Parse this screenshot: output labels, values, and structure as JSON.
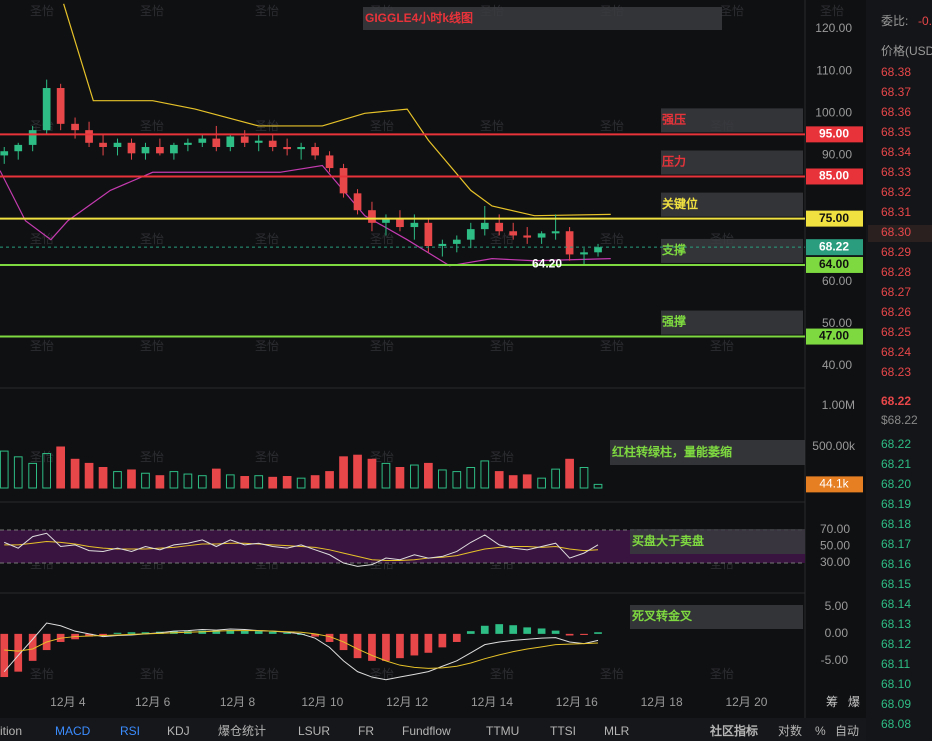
{
  "chart_data": {
    "type": "candlestick",
    "title": "GIGGLE4小时k线图",
    "xlim": [
      2.4,
      21.38
    ],
    "xticks": [
      {
        "value": 4,
        "label": "12月 4"
      },
      {
        "value": 6,
        "label": "12月 6"
      },
      {
        "value": 8,
        "label": "12月 8"
      },
      {
        "value": 10,
        "label": "12月 10"
      },
      {
        "value": 12,
        "label": "12月 12"
      },
      {
        "value": 14,
        "label": "12月 14"
      },
      {
        "value": 16,
        "label": "12月 16"
      },
      {
        "value": 18,
        "label": "12月 18"
      },
      {
        "value": 20,
        "label": "12月 20"
      }
    ],
    "ylim": [
      35.5,
      126.9
    ],
    "yticks": [
      {
        "value": 120,
        "label": "120.00"
      },
      {
        "value": 110,
        "label": "110.00"
      },
      {
        "value": 100,
        "label": "100.00"
      },
      {
        "value": 90,
        "label": "90.00"
      },
      {
        "value": 60,
        "label": "60.00"
      },
      {
        "value": 50,
        "label": "50.00"
      },
      {
        "value": 40,
        "label": "40.00"
      }
    ],
    "up_color": "#2ebd85",
    "down_color": "#e8474a",
    "x": [
      2.5,
      2.83,
      3.17,
      3.5,
      3.83,
      4.17,
      4.5,
      4.83,
      5.17,
      5.5,
      5.83,
      6.17,
      6.5,
      6.83,
      7.17,
      7.5,
      7.83,
      8.17,
      8.5,
      8.83,
      9.17,
      9.5,
      9.83,
      10.17,
      10.5,
      10.83,
      11.17,
      11.5,
      11.83,
      12.17,
      12.5,
      12.83,
      13.17,
      13.5,
      13.83,
      14.17,
      14.5,
      14.83,
      15.17,
      15.5,
      15.83,
      16.17,
      16.5
    ],
    "open": [
      90,
      91,
      92.5,
      96,
      106,
      97.5,
      96,
      93,
      92,
      93,
      90.5,
      92,
      90.5,
      92.5,
      93,
      94,
      92,
      94.5,
      93,
      93.5,
      92,
      91.5,
      92,
      90,
      87,
      81,
      77,
      74,
      75,
      73,
      74,
      68.5,
      69,
      70,
      72.5,
      74,
      72,
      71,
      70.5,
      71.5,
      72,
      66.5,
      67
    ],
    "high": [
      92,
      93,
      97,
      108,
      107,
      99,
      98,
      95,
      94,
      94,
      93,
      94,
      93,
      94,
      95,
      97,
      95,
      96,
      95,
      95,
      94,
      93,
      93,
      91,
      88,
      82,
      79,
      76,
      77,
      76,
      75,
      70,
      71,
      74,
      78,
      76,
      74,
      73,
      72,
      76,
      73,
      68,
      69
    ],
    "low": [
      88,
      89,
      91,
      95,
      96,
      94,
      92,
      90,
      90,
      89,
      89,
      90,
      89,
      91,
      92,
      91,
      91,
      92,
      91,
      91,
      90,
      89,
      89,
      86,
      80,
      76,
      72,
      71,
      72,
      70,
      67,
      66,
      67,
      68,
      71,
      71,
      70,
      69,
      69,
      70,
      65,
      64.2,
      66
    ],
    "close": [
      91,
      92.5,
      96,
      106,
      97.5,
      96,
      93,
      92,
      93,
      90.5,
      92,
      90.5,
      92.5,
      93,
      94,
      92,
      94.5,
      93,
      93.5,
      92,
      91.5,
      92,
      90,
      87,
      81,
      77,
      74,
      75,
      73,
      74,
      68.5,
      69,
      70,
      72.5,
      74,
      72,
      71,
      70.5,
      71.5,
      72,
      66.5,
      67,
      68.22
    ],
    "bands": [
      {
        "color": "#e6c229",
        "x": [
          3.9,
          4.6,
          6,
          7,
          8.5,
          10,
          11,
          12,
          12.5,
          13.5,
          14,
          15,
          16.8
        ],
        "values": [
          126,
          103,
          103,
          101,
          97,
          97,
          100,
          101,
          93.6,
          81.7,
          78,
          75.7,
          76
        ]
      },
      {
        "color": "#c43bb0",
        "x": [
          2.4,
          3,
          3.6,
          4,
          5,
          6,
          9,
          10,
          11,
          12,
          13,
          14,
          15,
          16.8
        ],
        "values": [
          86.4,
          74.5,
          70,
          74.5,
          81.7,
          86,
          86,
          87.6,
          75.7,
          70,
          63.8,
          65.5,
          65,
          65.5
        ]
      }
    ],
    "low_annotation": {
      "value": 64.2,
      "label": "64.20"
    },
    "last_price": {
      "value": 68.22,
      "label": "68.22",
      "color": "#2a9d7f"
    },
    "levels": [
      {
        "name": "强压",
        "value": 95,
        "label": "95.00",
        "color": "#e8333a"
      },
      {
        "name": "压力",
        "value": 85,
        "label": "85.00",
        "color": "#e8333a"
      },
      {
        "name": "关键位",
        "value": 75,
        "label": "75.00",
        "color": "#f0e040"
      },
      {
        "name": "支撑",
        "value": 64,
        "label": "64.00",
        "color": "#7ed940"
      },
      {
        "name": "强撑",
        "value": 47,
        "label": "47.00",
        "color": "#7ed940"
      }
    ],
    "volume": {
      "ylim": [
        0,
        1195000
      ],
      "yticks": [
        {
          "value": 1000000,
          "label": "1.00M"
        },
        {
          "value": 500000,
          "label": "500.00k"
        }
      ],
      "values": [
        450000,
        380000,
        300000,
        420000,
        500000,
        350000,
        300000,
        250000,
        200000,
        220000,
        180000,
        150000,
        200000,
        170000,
        150000,
        230000,
        160000,
        140000,
        150000,
        130000,
        140000,
        120000,
        150000,
        200000,
        380000,
        400000,
        350000,
        300000,
        250000,
        280000,
        300000,
        220000,
        200000,
        250000,
        330000,
        200000,
        150000,
        160000,
        120000,
        230000,
        350000,
        250000,
        44100
      ],
      "last_label": {
        "value": 44100,
        "label": "44.1k"
      },
      "annotation": "红柱转绿柱，量能萎缩"
    },
    "rsi": {
      "ylim": [
        -2.7,
        100.3
      ],
      "yticks": [
        {
          "value": 70,
          "label": "70.00"
        },
        {
          "value": 50,
          "label": "50.00"
        },
        {
          "value": 30,
          "label": "30.00"
        }
      ],
      "values": [
        55,
        48,
        62,
        66,
        50,
        52,
        45,
        44,
        48,
        44,
        50,
        46,
        52,
        54,
        58,
        50,
        58,
        52,
        54,
        50,
        48,
        52,
        46,
        40,
        30,
        26,
        28,
        36,
        34,
        40,
        36,
        38,
        44,
        55,
        64,
        52,
        48,
        46,
        50,
        54,
        36,
        42,
        52
      ],
      "ma": [
        52,
        52,
        54,
        56,
        55,
        53,
        50,
        48,
        47,
        47,
        47,
        48,
        49,
        51,
        53,
        53,
        54,
        54,
        53,
        52,
        51,
        50,
        49,
        46,
        42,
        38,
        34,
        33,
        33,
        34,
        36,
        37,
        39,
        43,
        47,
        49,
        50,
        50,
        49,
        50,
        47,
        45,
        46
      ],
      "annotation": "买盘大于卖盘"
    },
    "macd": {
      "ylim": [
        -10.4,
        7.2
      ],
      "yticks": [
        {
          "value": 5,
          "label": "5.00"
        },
        {
          "value": 0,
          "label": "0.00"
        },
        {
          "value": -5,
          "label": "-5.00"
        }
      ],
      "hist": [
        -8,
        -7,
        -5,
        -3,
        -1.5,
        -1,
        -0.5,
        -0.3,
        0.2,
        0.3,
        0.3,
        0.4,
        0.5,
        0.5,
        0.6,
        0.6,
        0.7,
        0.6,
        0.5,
        0.4,
        0.2,
        0,
        -0.5,
        -1.5,
        -3,
        -4.5,
        -5,
        -5,
        -4.5,
        -4,
        -3.5,
        -2.5,
        -1.5,
        0.5,
        1.5,
        1.8,
        1.6,
        1.2,
        1,
        0.6,
        -0.3,
        -0.2,
        0.3
      ],
      "macd": [
        -7,
        -4,
        -1,
        2,
        1.5,
        0.5,
        0,
        -0.5,
        -0.3,
        -0.2,
        0,
        0.2,
        0.5,
        0.6,
        0.8,
        0.7,
        0.9,
        0.8,
        0.6,
        0.5,
        0.3,
        0,
        -0.8,
        -2.5,
        -5,
        -7,
        -8,
        -8.5,
        -8,
        -7.5,
        -7,
        -6,
        -5,
        -3.5,
        -2,
        -1.5,
        -1.2,
        -1,
        -0.8,
        -0.7,
        -1.5,
        -1.8,
        -1.2
      ],
      "signal": [
        -3,
        -3.2,
        -2.8,
        -1.5,
        -0.8,
        -0.5,
        -0.4,
        -0.3,
        -0.2,
        -0.1,
        0,
        0.1,
        0.2,
        0.3,
        0.4,
        0.5,
        0.6,
        0.6,
        0.6,
        0.5,
        0.4,
        0.3,
        0,
        -0.5,
        -1.5,
        -2.8,
        -4,
        -5,
        -5.8,
        -6.2,
        -6.4,
        -6.3,
        -6,
        -5.4,
        -4.6,
        -3.9,
        -3.3,
        -2.8,
        -2.4,
        -2,
        -1.9,
        -1.8,
        -1.7
      ],
      "annotation": "死叉转金叉"
    },
    "corner_buttons": [
      "筹",
      "爆"
    ]
  },
  "watermark": "圣怡",
  "order_book": {
    "ratio_label": "委比:",
    "ratio_value": "-0.",
    "price_header": "价格(USD",
    "asks": [
      "68.38",
      "68.37",
      "68.36",
      "68.35",
      "68.34",
      "68.33",
      "68.32",
      "68.31",
      "68.30",
      "68.29",
      "68.28",
      "68.27",
      "68.26",
      "68.25",
      "68.24",
      "68.23"
    ],
    "last": "68.22",
    "last_usd": "$68.22",
    "bids": [
      "68.22",
      "68.21",
      "68.20",
      "68.19",
      "68.18",
      "68.17",
      "68.16",
      "68.15",
      "68.14",
      "68.13",
      "68.12",
      "68.11",
      "68.10",
      "68.09",
      "68.08"
    ]
  },
  "tabs": [
    "ition",
    "MACD",
    "RSI",
    "KDJ",
    "爆仓统计",
    "LSUR",
    "FR",
    "Fundflow",
    "TTMU",
    "TTSI",
    "MLR"
  ],
  "active_tabs": [
    1,
    2
  ],
  "tab_right": [
    "社区指标",
    "对数",
    "%",
    "自动"
  ]
}
